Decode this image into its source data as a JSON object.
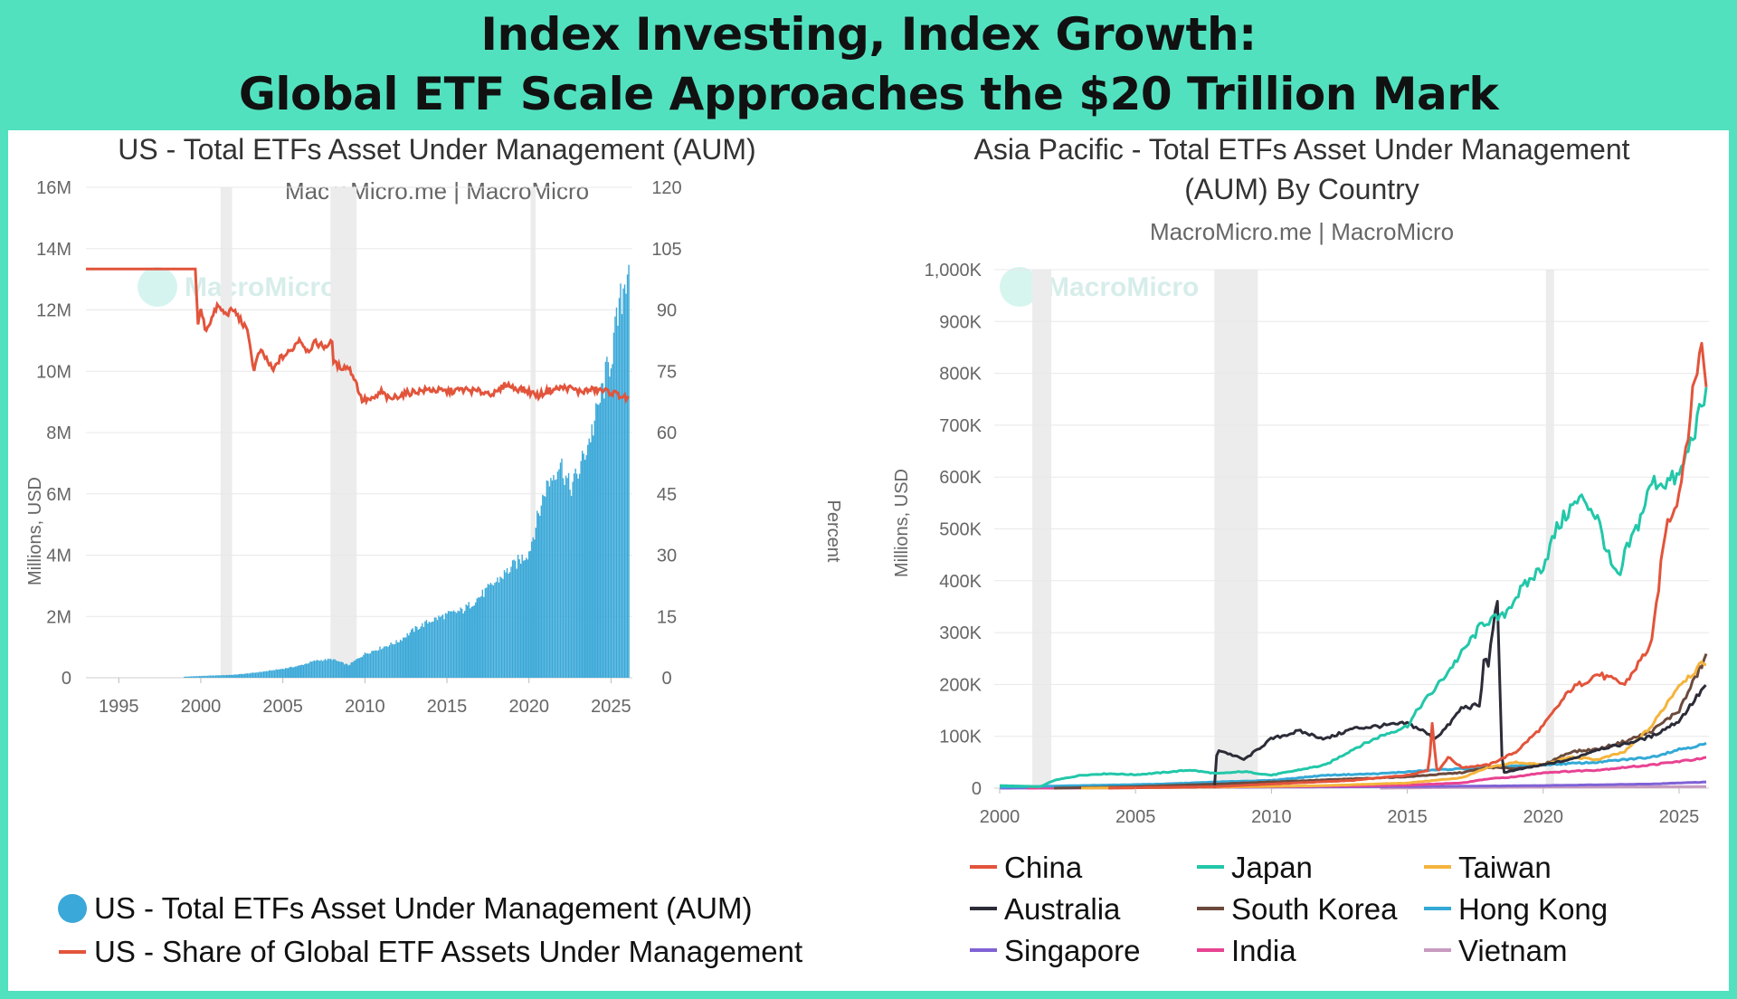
{
  "banner": {
    "line1": "Index Investing, Index Growth:",
    "line2": "Global ETF Scale Approaches the $20 Trillion Mark"
  },
  "colors": {
    "background": "#52e1bf",
    "us_aum_bars": "#3aa8d8",
    "us_share_line": "#e2543b",
    "recession_band": "#ececec"
  },
  "chart_data": [
    {
      "type": "bar+line",
      "title": "US - Total ETFs Asset Under Management (AUM)",
      "subtitle": "MacroMicro.me | MacroMicro",
      "watermark": "MacroMicro",
      "ylabel_left": "Millions, USD",
      "ylabel_right": "Percent",
      "xlim": [
        1993,
        2026.3
      ],
      "ylim_left": [
        0,
        16000000
      ],
      "ylim_right": [
        0,
        120
      ],
      "y_ticks_left": [
        "0",
        "2M",
        "4M",
        "6M",
        "8M",
        "10M",
        "12M",
        "14M",
        "16M"
      ],
      "y_ticks_right": [
        "0",
        "15",
        "30",
        "45",
        "60",
        "75",
        "90",
        "105",
        "120"
      ],
      "x_ticks": [
        "1995",
        "2000",
        "2005",
        "2010",
        "2015",
        "2020",
        "2025"
      ],
      "recession_shading": [
        [
          2001.2,
          2001.9
        ],
        [
          2007.9,
          2009.5
        ],
        [
          2020.1,
          2020.4
        ]
      ],
      "series": [
        {
          "name": "US - Total ETFs Asset Under Management (AUM)",
          "kind": "bar",
          "axis": "left",
          "color": "#3aa8d8",
          "points": [
            [
              1993,
              1000
            ],
            [
              1995,
              2000
            ],
            [
              1998,
              10000
            ],
            [
              2000,
              60000
            ],
            [
              2001,
              80000
            ],
            [
              2002,
              100000
            ],
            [
              2003,
              150000
            ],
            [
              2004,
              220000
            ],
            [
              2005,
              300000
            ],
            [
              2006,
              400000
            ],
            [
              2007,
              570000
            ],
            [
              2008,
              620000
            ],
            [
              2009,
              420000
            ],
            [
              2010,
              800000
            ],
            [
              2011,
              1000000
            ],
            [
              2012,
              1200000
            ],
            [
              2013,
              1600000
            ],
            [
              2014,
              1900000
            ],
            [
              2015,
              2100000
            ],
            [
              2016,
              2250000
            ],
            [
              2017,
              2700000
            ],
            [
              2018,
              3200000
            ],
            [
              2019,
              3700000
            ],
            [
              2020,
              4200000
            ],
            [
              2021,
              6300000
            ],
            [
              2021.9,
              7200000
            ],
            [
              2022.5,
              6300000
            ],
            [
              2023,
              6800000
            ],
            [
              2024,
              8500000
            ],
            [
              2025,
              10700000
            ],
            [
              2025.6,
              12500000
            ],
            [
              2026.1,
              14000000
            ]
          ]
        },
        {
          "name": "US - Share of Global ETF Assets Under Management",
          "kind": "line",
          "axis": "right",
          "color": "#e2543b",
          "points": [
            [
              1993,
              100
            ],
            [
              1999.7,
              100
            ],
            [
              1999.8,
              86
            ],
            [
              2000,
              90
            ],
            [
              2000.3,
              85
            ],
            [
              2000.8,
              89
            ],
            [
              2001,
              91
            ],
            [
              2001.5,
              89
            ],
            [
              2002,
              90
            ],
            [
              2002.5,
              87
            ],
            [
              2002.8,
              85
            ],
            [
              2003,
              82
            ],
            [
              2003.2,
              75
            ],
            [
              2003.6,
              80
            ],
            [
              2004,
              78
            ],
            [
              2004.4,
              75
            ],
            [
              2004.8,
              78
            ],
            [
              2005.5,
              80
            ],
            [
              2006,
              83
            ],
            [
              2006.5,
              80
            ],
            [
              2007,
              82
            ],
            [
              2007.5,
              81
            ],
            [
              2008,
              82
            ],
            [
              2008.1,
              77
            ],
            [
              2008.5,
              76
            ],
            [
              2009,
              76
            ],
            [
              2009.4,
              73
            ],
            [
              2009.8,
              68
            ],
            [
              2010.5,
              68
            ],
            [
              2011,
              70
            ],
            [
              2011.5,
              68
            ],
            [
              2012,
              69
            ],
            [
              2013,
              70
            ],
            [
              2014,
              70.5
            ],
            [
              2015,
              70
            ],
            [
              2016,
              70.5
            ],
            [
              2017,
              70
            ],
            [
              2018,
              69.5
            ],
            [
              2018.6,
              72
            ],
            [
              2019,
              71
            ],
            [
              2019.6,
              70.5
            ],
            [
              2020,
              70
            ],
            [
              2020.6,
              69
            ],
            [
              2021,
              70
            ],
            [
              2022,
              71
            ],
            [
              2022.6,
              70.8
            ],
            [
              2023,
              70
            ],
            [
              2024,
              70.5
            ],
            [
              2024.9,
              70
            ],
            [
              2025.6,
              69
            ],
            [
              2026.1,
              68
            ]
          ]
        }
      ]
    },
    {
      "type": "line",
      "title_line1": "Asia Pacific - Total ETFs Asset Under Management",
      "title_line2": "(AUM) By Country",
      "subtitle": "MacroMicro.me | MacroMicro",
      "watermark": "MacroMicro",
      "ylabel": "Millions, USD",
      "xlim": [
        1999.8,
        2026.1
      ],
      "ylim": [
        0,
        1000000
      ],
      "y_ticks": [
        "0",
        "100K",
        "200K",
        "300K",
        "400K",
        "500K",
        "600K",
        "700K",
        "800K",
        "900K",
        "1,000K"
      ],
      "x_ticks": [
        "2000",
        "2005",
        "2010",
        "2015",
        "2020",
        "2025"
      ],
      "recession_shading": [
        [
          2001.2,
          2001.9
        ],
        [
          2007.9,
          2009.5
        ],
        [
          2020.1,
          2020.4
        ]
      ],
      "series": [
        {
          "name": "China",
          "color": "#e2543b",
          "points": [
            [
              2004,
              0
            ],
            [
              2008,
              3000
            ],
            [
              2010,
              8000
            ],
            [
              2013,
              15000
            ],
            [
              2015,
              25000
            ],
            [
              2015.8,
              35000
            ],
            [
              2015.9,
              130000
            ],
            [
              2016.1,
              30000
            ],
            [
              2016.5,
              60000
            ],
            [
              2017,
              40000
            ],
            [
              2018,
              45000
            ],
            [
              2019,
              70000
            ],
            [
              2020,
              120000
            ],
            [
              2021,
              190000
            ],
            [
              2022,
              220000
            ],
            [
              2023,
              200000
            ],
            [
              2024,
              280000
            ],
            [
              2024.5,
              500000
            ],
            [
              2025,
              570000
            ],
            [
              2025.6,
              790000
            ],
            [
              2025.8,
              860000
            ],
            [
              2026,
              790000
            ]
          ]
        },
        {
          "name": "Japan",
          "color": "#22c7a9",
          "points": [
            [
              2000,
              5000
            ],
            [
              2001.5,
              3000
            ],
            [
              2002,
              15000
            ],
            [
              2003,
              25000
            ],
            [
              2004,
              28000
            ],
            [
              2005,
              26000
            ],
            [
              2006,
              30000
            ],
            [
              2007,
              35000
            ],
            [
              2008,
              28000
            ],
            [
              2009,
              32000
            ],
            [
              2010,
              25000
            ],
            [
              2011,
              35000
            ],
            [
              2012,
              45000
            ],
            [
              2013,
              75000
            ],
            [
              2014,
              100000
            ],
            [
              2015,
              120000
            ],
            [
              2015.5,
              160000
            ],
            [
              2016,
              190000
            ],
            [
              2017,
              260000
            ],
            [
              2017.8,
              320000
            ],
            [
              2018.5,
              330000
            ],
            [
              2019,
              370000
            ],
            [
              2020,
              430000
            ],
            [
              2020.5,
              500000
            ],
            [
              2021,
              540000
            ],
            [
              2021.5,
              560000
            ],
            [
              2022,
              520000
            ],
            [
              2022.5,
              430000
            ],
            [
              2022.8,
              400000
            ],
            [
              2023,
              450000
            ],
            [
              2023.5,
              510000
            ],
            [
              2024,
              590000
            ],
            [
              2024.5,
              590000
            ],
            [
              2025,
              600000
            ],
            [
              2025.5,
              680000
            ],
            [
              2026,
              760000
            ]
          ]
        },
        {
          "name": "Taiwan",
          "color": "#f4b43c",
          "points": [
            [
              2003,
              0
            ],
            [
              2008,
              2000
            ],
            [
              2012,
              5000
            ],
            [
              2015,
              10000
            ],
            [
              2017,
              20000
            ],
            [
              2018,
              40000
            ],
            [
              2019,
              50000
            ],
            [
              2020,
              45000
            ],
            [
              2021,
              60000
            ],
            [
              2022,
              55000
            ],
            [
              2023,
              70000
            ],
            [
              2024,
              120000
            ],
            [
              2025,
              200000
            ],
            [
              2026,
              245000
            ]
          ]
        },
        {
          "name": "Australia",
          "color": "#2c2c38",
          "points": [
            [
              2007.9,
              0
            ],
            [
              2008,
              75000
            ],
            [
              2009,
              55000
            ],
            [
              2009.5,
              75000
            ],
            [
              2010,
              95000
            ],
            [
              2011,
              110000
            ],
            [
              2012,
              95000
            ],
            [
              2013,
              115000
            ],
            [
              2014,
              120000
            ],
            [
              2015,
              125000
            ],
            [
              2015.6,
              110000
            ],
            [
              2016,
              95000
            ],
            [
              2016.5,
              120000
            ],
            [
              2017,
              155000
            ],
            [
              2017.7,
              160000
            ],
            [
              2017.8,
              250000
            ],
            [
              2018,
              240000
            ],
            [
              2018.3,
              380000
            ],
            [
              2018.5,
              30000
            ],
            [
              2019,
              35000
            ],
            [
              2020,
              45000
            ],
            [
              2021,
              55000
            ],
            [
              2022,
              75000
            ],
            [
              2023,
              85000
            ],
            [
              2024,
              100000
            ],
            [
              2025,
              130000
            ],
            [
              2026,
              200000
            ]
          ]
        },
        {
          "name": "South Korea",
          "color": "#6b4a3d",
          "points": [
            [
              2002,
              0
            ],
            [
              2005,
              3000
            ],
            [
              2008,
              8000
            ],
            [
              2010,
              12000
            ],
            [
              2013,
              18000
            ],
            [
              2015,
              22000
            ],
            [
              2017,
              30000
            ],
            [
              2018,
              40000
            ],
            [
              2019,
              38000
            ],
            [
              2020,
              45000
            ],
            [
              2021,
              70000
            ],
            [
              2022,
              75000
            ],
            [
              2023,
              90000
            ],
            [
              2024,
              110000
            ],
            [
              2025,
              150000
            ],
            [
              2026,
              255000
            ]
          ]
        },
        {
          "name": "Hong Kong",
          "color": "#34a9d6",
          "points": [
            [
              2000,
              2000
            ],
            [
              2003,
              5000
            ],
            [
              2006,
              8000
            ],
            [
              2008,
              12000
            ],
            [
              2010,
              15000
            ],
            [
              2012,
              25000
            ],
            [
              2014,
              28000
            ],
            [
              2016,
              35000
            ],
            [
              2018,
              40000
            ],
            [
              2020,
              45000
            ],
            [
              2022,
              50000
            ],
            [
              2024,
              60000
            ],
            [
              2025,
              75000
            ],
            [
              2026,
              85000
            ]
          ]
        },
        {
          "name": "Singapore",
          "color": "#8062d6",
          "points": [
            [
              2000,
              0
            ],
            [
              2005,
              1000
            ],
            [
              2010,
              2000
            ],
            [
              2015,
              3000
            ],
            [
              2020,
              5000
            ],
            [
              2024,
              8000
            ],
            [
              2026,
              12000
            ]
          ]
        },
        {
          "name": "India",
          "color": "#e84392",
          "points": [
            [
              2001,
              0
            ],
            [
              2005,
              1000
            ],
            [
              2010,
              3000
            ],
            [
              2013,
              4000
            ],
            [
              2015,
              6000
            ],
            [
              2017,
              10000
            ],
            [
              2018,
              18000
            ],
            [
              2019,
              22000
            ],
            [
              2020,
              30000
            ],
            [
              2022,
              35000
            ],
            [
              2024,
              45000
            ],
            [
              2026,
              58000
            ]
          ]
        },
        {
          "name": "Vietnam",
          "color": "#c79ac0",
          "points": [
            [
              2014,
              0
            ],
            [
              2016,
              1000
            ],
            [
              2020,
              2000
            ],
            [
              2026,
              3000
            ]
          ]
        }
      ]
    }
  ]
}
